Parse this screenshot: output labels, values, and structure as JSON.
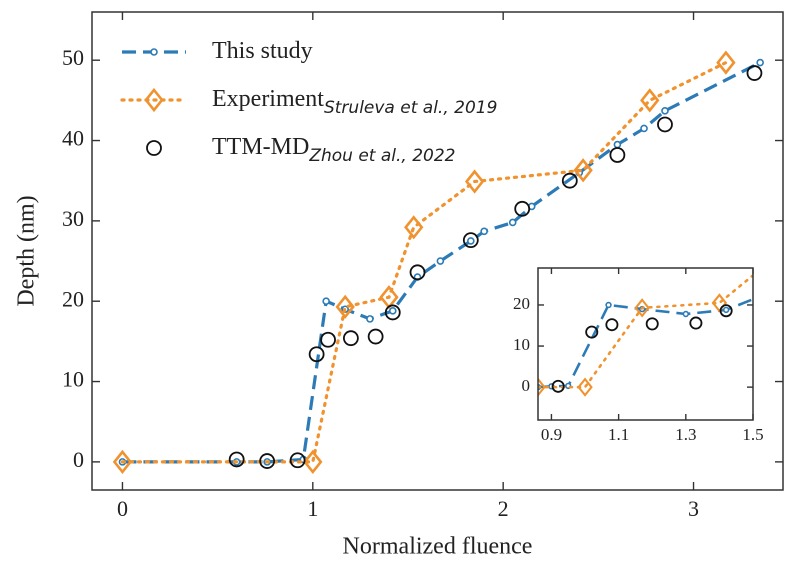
{
  "chart_data": [
    {
      "type": "line",
      "xlabel": "Normalized fluence",
      "ylabel": "Depth (nm)",
      "xlim": [
        -0.16,
        3.47
      ],
      "ylim": [
        -3.5,
        56
      ],
      "xticks": [
        0,
        1,
        2,
        3
      ],
      "yticks": [
        0,
        10,
        20,
        30,
        40,
        50
      ],
      "legend": "upper left",
      "series": [
        {
          "name": "This study",
          "color": "#2c7bb6",
          "line_style": "dashed",
          "marker": "small-circle",
          "x": [
            0,
            0.6,
            0.76,
            0.95,
            1.07,
            1.17,
            1.3,
            1.42,
            1.55,
            1.67,
            1.83,
            1.9,
            2.05,
            2.15,
            2.4,
            2.6,
            2.74,
            2.85,
            3.35
          ],
          "values": [
            0,
            0,
            0,
            0.3,
            20,
            19,
            17.8,
            18.8,
            23,
            25,
            27.5,
            28.7,
            29.8,
            31.8,
            36,
            39.5,
            41.5,
            43.7,
            49.7
          ]
        },
        {
          "name": "Experiment",
          "citation": "Struleva et al., 2019",
          "color": "#f0922e",
          "line_style": "dotted",
          "marker": "diamond",
          "x": [
            0,
            1.0,
            1.17,
            1.4,
            1.53,
            1.85,
            2.42,
            2.77,
            3.17
          ],
          "values": [
            0,
            0,
            19.3,
            20.5,
            29.2,
            34.9,
            36.3,
            45,
            49.7
          ]
        },
        {
          "name": "TTM-MD",
          "citation": "Zhou et al., 2022",
          "color": "#111111",
          "line_style": "none",
          "marker": "open-circle",
          "x": [
            0.6,
            0.76,
            0.92,
            1.02,
            1.08,
            1.2,
            1.33,
            1.42,
            1.55,
            1.83,
            2.1,
            2.35,
            2.6,
            2.85,
            3.32
          ],
          "values": [
            0.3,
            0.1,
            0.2,
            13.4,
            15.2,
            15.4,
            15.6,
            18.6,
            23.6,
            27.6,
            31.5,
            35,
            38.2,
            42,
            48.4
          ]
        }
      ]
    },
    {
      "type": "line",
      "xlim": [
        0.86,
        1.5
      ],
      "ylim": [
        -8,
        29
      ],
      "xticks": [
        0.9,
        1.1,
        1.3,
        1.5
      ],
      "yticks": [
        0,
        10,
        20
      ],
      "series": [
        {
          "color": "#2c7bb6",
          "line_style": "dashed",
          "marker": "small-circle",
          "x": [
            0.86,
            0.9,
            0.95,
            1.07,
            1.17,
            1.3,
            1.42,
            1.55
          ],
          "values": [
            0,
            0.2,
            0.3,
            20,
            19,
            17.8,
            18.8,
            23
          ]
        },
        {
          "color": "#f0922e",
          "line_style": "dotted",
          "marker": "diamond",
          "x": [
            0.86,
            1.0,
            1.17,
            1.4,
            1.53
          ],
          "values": [
            0,
            0,
            19.3,
            20.5,
            29.2
          ]
        },
        {
          "color": "#111111",
          "line_style": "none",
          "marker": "open-circle",
          "x": [
            0.92,
            1.02,
            1.08,
            1.2,
            1.33,
            1.42
          ],
          "values": [
            0.2,
            13.4,
            15.2,
            15.4,
            15.6,
            18.6
          ]
        }
      ]
    }
  ]
}
